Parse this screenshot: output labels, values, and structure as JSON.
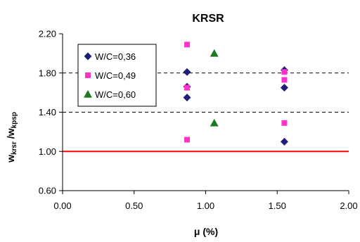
{
  "chart_data": {
    "type": "scatter",
    "title": "KRSR",
    "xlabel": "μ (%)",
    "ylabel_main": "w",
    "ylabel_sub1": "krsr",
    "ylabel_slash": " /w",
    "ylabel_sub2": "kpsp",
    "xlim": [
      0.0,
      2.0
    ],
    "ylim": [
      0.6,
      2.2
    ],
    "x_ticks": [
      0.0,
      0.5,
      1.0,
      1.5,
      2.0
    ],
    "x_tick_labels": [
      "0.00",
      "0.50",
      "1.00",
      "1.50",
      "2.00"
    ],
    "y_ticks": [
      0.6,
      1.0,
      1.4,
      1.8,
      2.2
    ],
    "y_tick_labels": [
      "0.60",
      "1.00",
      "1.40",
      "1.80",
      "2.20"
    ],
    "dashed_gridlines_y": [
      1.4,
      1.8
    ],
    "reference_line": {
      "y": 1.0,
      "color": "#ff0000"
    },
    "legend_position": "top-left",
    "series": [
      {
        "name": "W/C=0,36",
        "marker": "diamond",
        "color": "#1f1f7a",
        "points": [
          [
            0.87,
            1.81
          ],
          [
            0.87,
            1.66
          ],
          [
            0.87,
            1.55
          ],
          [
            1.55,
            1.83
          ],
          [
            1.55,
            1.65
          ],
          [
            1.55,
            1.1
          ]
        ]
      },
      {
        "name": "W/C=0,49",
        "marker": "square",
        "color": "#ff33cc",
        "points": [
          [
            0.87,
            2.09
          ],
          [
            0.87,
            1.65
          ],
          [
            0.87,
            1.12
          ],
          [
            1.55,
            1.81
          ],
          [
            1.55,
            1.73
          ],
          [
            1.55,
            1.29
          ]
        ]
      },
      {
        "name": "W/C=0,60",
        "marker": "triangle",
        "color": "#1e7a1e",
        "points": [
          [
            1.06,
            2.0
          ],
          [
            1.06,
            1.29
          ]
        ]
      }
    ]
  }
}
